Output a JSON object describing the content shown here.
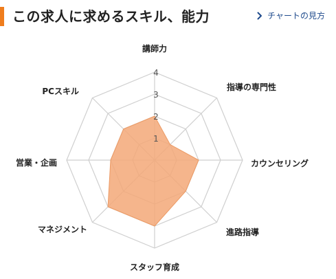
{
  "header": {
    "title": "この求人に求めるスキル、能力",
    "link_label": "チャートの見方",
    "link_icon": "chevron-right-icon"
  },
  "colors": {
    "accent": "#ef7d1d",
    "link": "#1e4a8c",
    "grid": "#cfcfcf",
    "fill": "#f3a878",
    "stroke": "#ec9a64"
  },
  "chart_data": {
    "type": "radar",
    "axes": [
      "講師力",
      "指導の専門性",
      "カウンセリング",
      "進路指導",
      "スタッフ育成",
      "マネジメント",
      "営業・企画",
      "PCスキル"
    ],
    "values": [
      2,
      1,
      2,
      2,
      3,
      3,
      2,
      2
    ],
    "ticks": [
      "1",
      "2",
      "3",
      "4"
    ],
    "range": [
      0,
      4
    ]
  }
}
